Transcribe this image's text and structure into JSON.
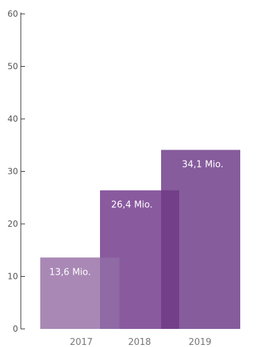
{
  "chart_data": {
    "type": "bar",
    "categories": [
      "2017",
      "2018",
      "2019"
    ],
    "values": [
      13.6,
      26.4,
      34.1
    ],
    "data_labels": [
      "13,6 Mio.",
      "26,4 Mio.",
      "34,1 Mio."
    ],
    "ylim": [
      0,
      60
    ],
    "yticks": [
      "0",
      "10",
      "20",
      "30",
      "40",
      "50",
      "60"
    ],
    "xlabel": "",
    "ylabel": "",
    "title": "",
    "grid": false,
    "bars_overlap": true,
    "colors": {
      "bar_2017": "#a988b5",
      "bar_2018": "#8a5a9f",
      "bar_2019": "#865c9c",
      "overlap_2017_2018": "#8f6aa5",
      "overlap_2018_2019": "#733f89",
      "axis": "#333333"
    }
  }
}
